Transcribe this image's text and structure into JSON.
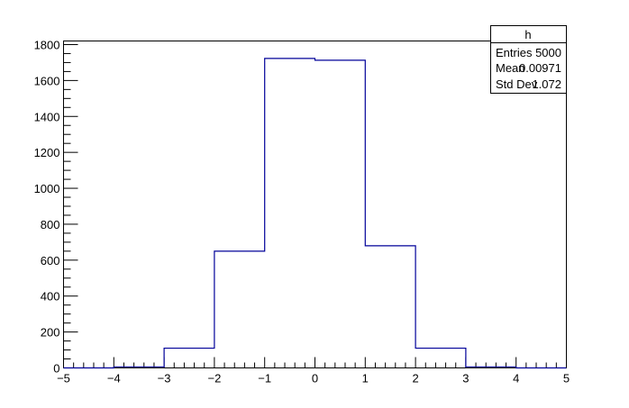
{
  "chart_data": {
    "type": "bar",
    "histogram": true,
    "bin_edges": [
      -5,
      -4,
      -3,
      -2,
      -1,
      0,
      1,
      2,
      3,
      4,
      5
    ],
    "values": [
      0,
      5,
      110,
      650,
      1723,
      1713,
      680,
      110,
      5,
      0
    ],
    "xlim": [
      -5,
      5
    ],
    "ylim": [
      0,
      1820
    ],
    "xticks": [
      "-5",
      "-4",
      "-3",
      "-2",
      "-1",
      "0",
      "1",
      "2",
      "3",
      "4",
      "5"
    ],
    "yticks": [
      "0",
      "200",
      "400",
      "600",
      "800",
      "1000",
      "1200",
      "1400",
      "1600",
      "1800"
    ],
    "line_color": "#000099",
    "grid": false
  },
  "stats": {
    "title": "h",
    "rows": [
      {
        "label": "Entries",
        "value": "5000"
      },
      {
        "label": "Mean",
        "value": "0.00971"
      },
      {
        "label": "Std Dev",
        "value": "1.072"
      }
    ]
  }
}
